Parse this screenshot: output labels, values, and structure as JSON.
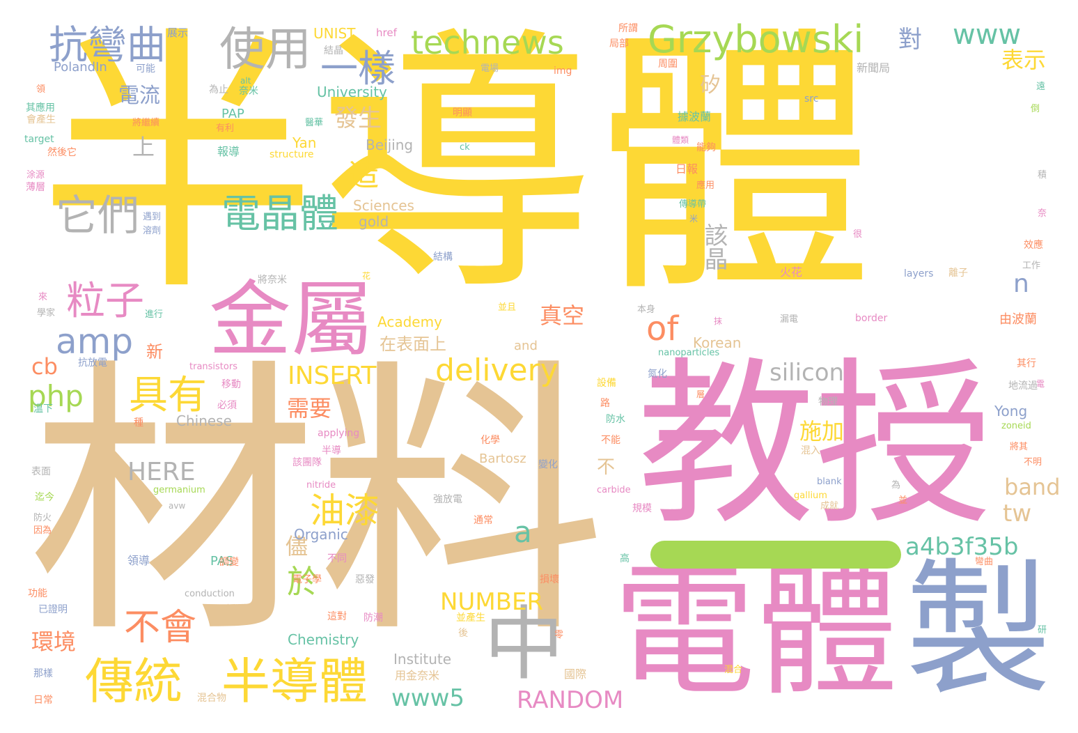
{
  "words": {
    "w1": "半導體",
    "w2": "材料",
    "w3": "教授",
    "w4": "電體",
    "w5": "製",
    "w6": "中",
    "w7": "金屬",
    "w8": "傳統",
    "w9": "半導體",
    "w10": "Grzybowski",
    "w11": "technews",
    "w12": "使用",
    "w13": "一樣",
    "w14": "抗彎曲",
    "w15": "www",
    "w16": "電晶體",
    "w17": "它們",
    "w18": "具有",
    "w19": "粒子",
    "w20": "amp",
    "w21": "of",
    "w22": "delivery",
    "w23": "不會",
    "w24": "油漆",
    "w25": "於",
    "w26": "a4b3f35b",
    "w27": "php",
    "w28": "INSERT",
    "w29": "silicon",
    "w30": "HERE",
    "w31": "NUMBER",
    "w32": "RANDOM",
    "w33": "www5",
    "w34": "環境",
    "w35": "band",
    "w36": "tw",
    "w37": "a",
    "w38": "需要",
    "w39": "施加",
    "w40": "在表面上",
    "w41": "真空",
    "w42": "發生",
    "w43": "電流",
    "w44": "造",
    "w45": "該晶",
    "w46": "矽",
    "w47": "對",
    "w48": "表示",
    "w49": "n",
    "w50": "cb",
    "w51": "不",
    "w52": "新",
    "w53": "上",
    "w54": "儘",
    "w55": "UNIST",
    "w56": "University",
    "w57": "Academy",
    "w58": "Chemistry",
    "w59": "Institute",
    "w60": "Organic",
    "w61": "Sciences",
    "w62": "Beijing",
    "w63": "Yan",
    "w64": "gold",
    "w65": "Korean",
    "w66": "and",
    "w67": "Chinese",
    "w68": "Bartosz",
    "w69": "Yong",
    "w70": "PAP",
    "w71": "PAS",
    "w72": "PolandIn",
    "w73": "展示",
    "w74": "結晶",
    "w75": "可能",
    "w76": "href",
    "w77": "所謂",
    "w78": "局部",
    "w79": "電場",
    "w80": "img",
    "w81": "周圍",
    "w82": "新聞局",
    "w83": "為止",
    "w84": "奈米",
    "w85": "明顯",
    "w86": "據波蘭",
    "w87": "報導",
    "w88": "structure",
    "w89": "日報",
    "w90": "應用",
    "w91": "傳導帶",
    "w92": "結構",
    "w93": "將奈米",
    "w94": "火花",
    "w95": "layers",
    "w96": "離子",
    "w97": "由波蘭",
    "w98": "border",
    "w99": "nanoparticles",
    "w100": "transistors",
    "w101": "移動",
    "w102": "必須",
    "w103": "溫下",
    "w104": "種",
    "w105": "設備",
    "w106": "路",
    "w107": "防水",
    "w108": "物理",
    "w109": "applying",
    "w110": "半導",
    "w111": "該團隊",
    "w112": "化學",
    "w113": "不能",
    "w114": "變化",
    "w115": "混入",
    "w116": "germanium",
    "w117": "avw",
    "w118": "carbide",
    "w119": "blank",
    "w120": "gallium",
    "w121": "成就",
    "w122": "規模",
    "w123": "強放電",
    "w124": "nitride",
    "w125": "通常",
    "w126": "不同",
    "w127": "高",
    "w128": "領導",
    "w129": "調變",
    "w130": "電子學",
    "w131": "惡發",
    "w132": "conduction",
    "w133": "損壞",
    "w134": "碳化",
    "w135": "這對",
    "w136": "防潮",
    "w137": "並產生",
    "w138": "後",
    "w139": "零",
    "w140": "國際",
    "w141": "用金奈米",
    "w142": "混合",
    "w143": "混合物",
    "w144": "那樣",
    "w145": "日常",
    "w146": "因為",
    "w147": "功能",
    "w148": "已證明",
    "w149": "防火",
    "w150": "迄今",
    "w151": "表面",
    "w152": "抗放電",
    "w153": "學家",
    "w154": "進行",
    "w155": "來",
    "w156": "遇到",
    "w157": "溶劑",
    "w158": "薄層",
    "w159": "涂源",
    "w160": "然後它",
    "w161": "target",
    "w162": "會產生",
    "w163": "其應用",
    "w164": "領",
    "w165": "有利",
    "w166": "將繼續",
    "w167": "醫華",
    "w168": "能夠",
    "w169": "體類",
    "w170": "src",
    "w171": "ck",
    "w172": "本身",
    "w173": "漏電",
    "w174": "地流過",
    "w175": "其行",
    "w176": "將其",
    "w177": "不明",
    "w178": "為",
    "w179": "並",
    "w180": "研",
    "w181": "彎曲",
    "w182": "效應",
    "w183": "工作",
    "w184": "很",
    "w185": "倒",
    "w186": "積",
    "w187": "奈",
    "w188": "遠",
    "w189": "並且",
    "w190": "層",
    "w191": "氮化",
    "w192": "alt",
    "w193": "zoneid",
    "w194": "米",
    "w195": "花",
    "w196": "抹",
    "w197": "電"
  }
}
